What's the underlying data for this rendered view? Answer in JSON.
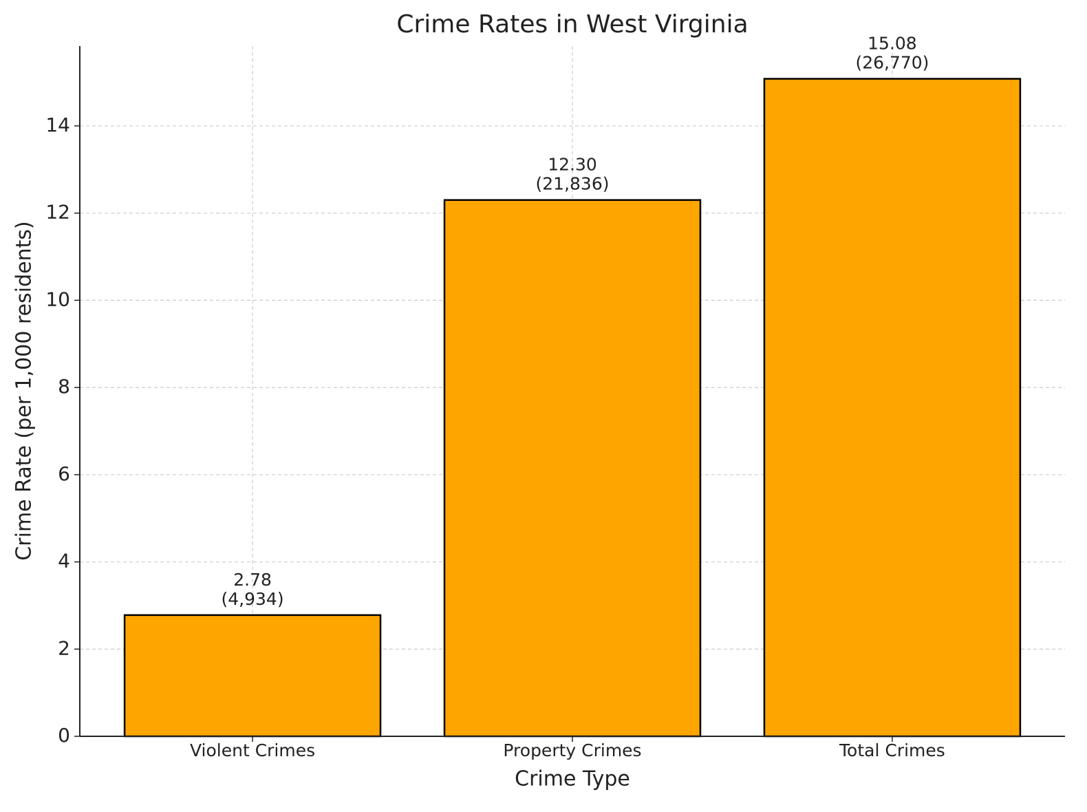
{
  "chart_data": {
    "type": "bar",
    "title": "Crime Rates in West Virginia",
    "x_label": "Crime Type",
    "y_label": "Crime Rate (per 1,000 residents)",
    "categories": [
      "Violent Crimes",
      "Property Crimes",
      "Total Crimes"
    ],
    "values": [
      2.78,
      12.3,
      15.08
    ],
    "value_labels": [
      "2.78",
      "12.30",
      "15.08"
    ],
    "counts": [
      4934,
      21836,
      26770
    ],
    "count_labels": [
      "(4,934)",
      "(21,836)",
      "(26,770)"
    ],
    "color": "#ffa500",
    "edge_color": "#000000",
    "ylim": [
      0,
      15.83
    ],
    "yticks": [
      0,
      2,
      4,
      6,
      8,
      10,
      12,
      14
    ],
    "grid": true
  }
}
